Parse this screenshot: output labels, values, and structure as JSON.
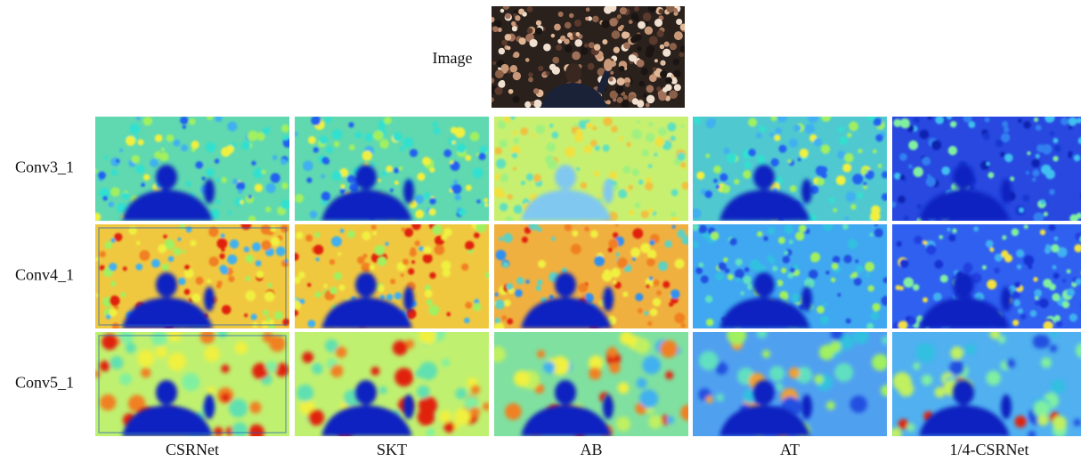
{
  "image_label": "Image",
  "rows": [
    "Conv3_1",
    "Conv4_1",
    "Conv5_1"
  ],
  "columns": [
    "CSRNet",
    "SKT",
    "AB",
    "AT",
    "1/4-CSRNet"
  ]
}
